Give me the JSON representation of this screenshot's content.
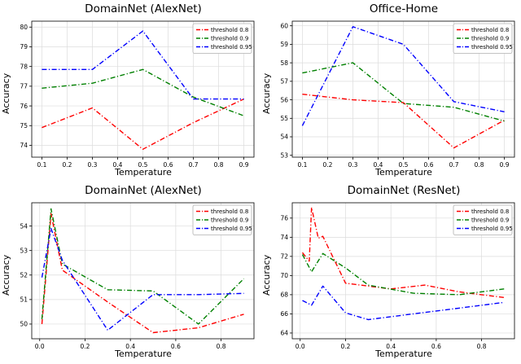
{
  "figure": {
    "background": "#ffffff"
  },
  "chart_data": [
    {
      "type": "line",
      "title": "DomainNet (AlexNet)",
      "xlabel": "Temperature",
      "ylabel": "Accuracy",
      "xlim": [
        0.06,
        0.94
      ],
      "ylim": [
        73.4,
        80.3
      ],
      "xticks": [
        0.1,
        0.2,
        0.3,
        0.4,
        0.5,
        0.6,
        0.7,
        0.8,
        0.9
      ],
      "yticks": [
        74,
        75,
        76,
        77,
        78,
        79,
        80
      ],
      "grid": true,
      "legend_position": "upper right",
      "line_style": "dashdot",
      "series": [
        {
          "name": "threshold 0.8",
          "color": "#ff0000",
          "x": [
            0.1,
            0.3,
            0.5,
            0.7,
            0.9
          ],
          "values": [
            74.9,
            75.9,
            73.8,
            75.15,
            76.35
          ]
        },
        {
          "name": "threshold 0.9",
          "color": "#008000",
          "x": [
            0.1,
            0.3,
            0.5,
            0.7,
            0.9
          ],
          "values": [
            76.9,
            77.15,
            77.85,
            76.45,
            75.5
          ]
        },
        {
          "name": "threshold 0.95",
          "color": "#0000ff",
          "x": [
            0.1,
            0.3,
            0.5,
            0.7,
            0.9
          ],
          "values": [
            77.85,
            77.85,
            79.8,
            76.35,
            76.35
          ]
        }
      ]
    },
    {
      "type": "line",
      "title": "Office-Home",
      "xlabel": "Temperature",
      "ylabel": "Accuracy",
      "xlim": [
        0.06,
        0.94
      ],
      "ylim": [
        52.9,
        60.25
      ],
      "xticks": [
        0.1,
        0.2,
        0.3,
        0.4,
        0.5,
        0.6,
        0.7,
        0.8,
        0.9
      ],
      "yticks": [
        53,
        54,
        55,
        56,
        57,
        58,
        59,
        60
      ],
      "grid": true,
      "legend_position": "upper right",
      "line_style": "dashdot",
      "series": [
        {
          "name": "threshold 0.8",
          "color": "#ff0000",
          "x": [
            0.1,
            0.3,
            0.5,
            0.7,
            0.9
          ],
          "values": [
            56.3,
            56.0,
            55.85,
            53.4,
            54.9
          ]
        },
        {
          "name": "threshold 0.9",
          "color": "#008000",
          "x": [
            0.1,
            0.3,
            0.5,
            0.7,
            0.9
          ],
          "values": [
            57.45,
            58.0,
            55.8,
            55.6,
            54.85
          ]
        },
        {
          "name": "threshold 0.95",
          "color": "#0000ff",
          "x": [
            0.1,
            0.3,
            0.5,
            0.7,
            0.9
          ],
          "values": [
            54.6,
            59.95,
            59.0,
            55.9,
            55.35
          ]
        }
      ]
    },
    {
      "type": "line",
      "title": "DomainNet (AlexNet)",
      "xlabel": "Temperature",
      "ylabel": "Accuracy",
      "xlim": [
        -0.035,
        0.945
      ],
      "ylim": [
        49.4,
        54.95
      ],
      "xticks": [
        0.0,
        0.2,
        0.4,
        0.6,
        0.8
      ],
      "yticks": [
        50,
        51,
        52,
        53,
        54
      ],
      "grid": true,
      "legend_position": "upper right",
      "line_style": "dashdot",
      "series": [
        {
          "name": "threshold 0.8",
          "color": "#ff0000",
          "x": [
            0.01,
            0.05,
            0.1,
            0.3,
            0.5,
            0.7,
            0.9
          ],
          "values": [
            50.0,
            54.5,
            52.2,
            50.9,
            49.65,
            49.85,
            50.4
          ]
        },
        {
          "name": "threshold 0.9",
          "color": "#008000",
          "x": [
            0.01,
            0.05,
            0.1,
            0.3,
            0.5,
            0.7,
            0.9
          ],
          "values": [
            50.2,
            54.7,
            52.45,
            51.4,
            51.35,
            50.0,
            51.85
          ]
        },
        {
          "name": "threshold 0.95",
          "color": "#0000ff",
          "x": [
            0.01,
            0.05,
            0.1,
            0.3,
            0.5,
            0.7,
            0.9
          ],
          "values": [
            51.9,
            53.9,
            52.6,
            49.75,
            51.2,
            51.2,
            51.25
          ]
        }
      ]
    },
    {
      "type": "line",
      "title": "DomainNet (ResNet)",
      "xlabel": "Temperature",
      "ylabel": "Accuracy",
      "xlim": [
        -0.035,
        0.945
      ],
      "ylim": [
        63.4,
        77.6
      ],
      "xticks": [
        0.0,
        0.2,
        0.4,
        0.6,
        0.8
      ],
      "yticks": [
        64,
        66,
        68,
        70,
        72,
        74,
        76
      ],
      "grid": true,
      "legend_position": "upper right",
      "line_style": "dashdot",
      "series": [
        {
          "name": "threshold 0.8",
          "color": "#ff0000",
          "x": [
            0.01,
            0.04,
            0.05,
            0.08,
            0.1,
            0.2,
            0.4,
            0.55,
            0.7,
            0.9
          ],
          "values": [
            72.4,
            71.5,
            77.1,
            73.9,
            74.1,
            69.2,
            68.6,
            69.0,
            68.3,
            67.7
          ]
        },
        {
          "name": "threshold 0.9",
          "color": "#008000",
          "x": [
            0.01,
            0.05,
            0.1,
            0.2,
            0.3,
            0.5,
            0.7,
            0.9
          ],
          "values": [
            72.2,
            70.4,
            72.3,
            70.8,
            69.0,
            68.15,
            68.0,
            68.6
          ]
        },
        {
          "name": "threshold 0.95",
          "color": "#0000ff",
          "x": [
            0.01,
            0.05,
            0.1,
            0.2,
            0.3,
            0.5,
            0.7,
            0.9
          ],
          "values": [
            67.4,
            66.9,
            68.9,
            66.1,
            65.4,
            66.0,
            66.6,
            67.2
          ]
        }
      ]
    }
  ]
}
